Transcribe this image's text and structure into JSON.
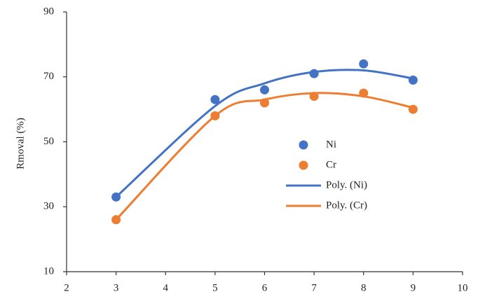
{
  "chart_data": {
    "type": "scatter",
    "y_label": "Rmoval (%)",
    "xlim": [
      2,
      10
    ],
    "xticks": [
      2,
      3,
      4,
      5,
      6,
      7,
      8,
      9,
      10
    ],
    "ylim": [
      10,
      90
    ],
    "yticks": [
      10,
      30,
      50,
      70,
      90
    ],
    "grid": false,
    "legend": "inside-right",
    "series": [
      {
        "name": "Ni",
        "color": "#4472c4",
        "mode": "markers",
        "x": [
          3,
          5,
          6,
          7,
          8,
          9
        ],
        "values": [
          33,
          63,
          66,
          71,
          74,
          69
        ]
      },
      {
        "name": "Cr",
        "color": "#ed7d31",
        "mode": "markers",
        "x": [
          3,
          5,
          6,
          7,
          8,
          9
        ],
        "values": [
          26,
          58,
          62,
          64,
          65,
          60
        ]
      },
      {
        "name": "Poly. (Ni)",
        "color": "#4472c4",
        "mode": "line",
        "x": [
          3,
          5,
          6,
          7,
          8,
          9
        ],
        "values": [
          33,
          61,
          68,
          71.5,
          72,
          69.5
        ]
      },
      {
        "name": "Poly. (Cr)",
        "color": "#ed7d31",
        "mode": "line",
        "x": [
          3,
          5,
          6,
          7,
          8,
          9
        ],
        "values": [
          26,
          58,
          63,
          65,
          64,
          60.5
        ]
      }
    ]
  }
}
